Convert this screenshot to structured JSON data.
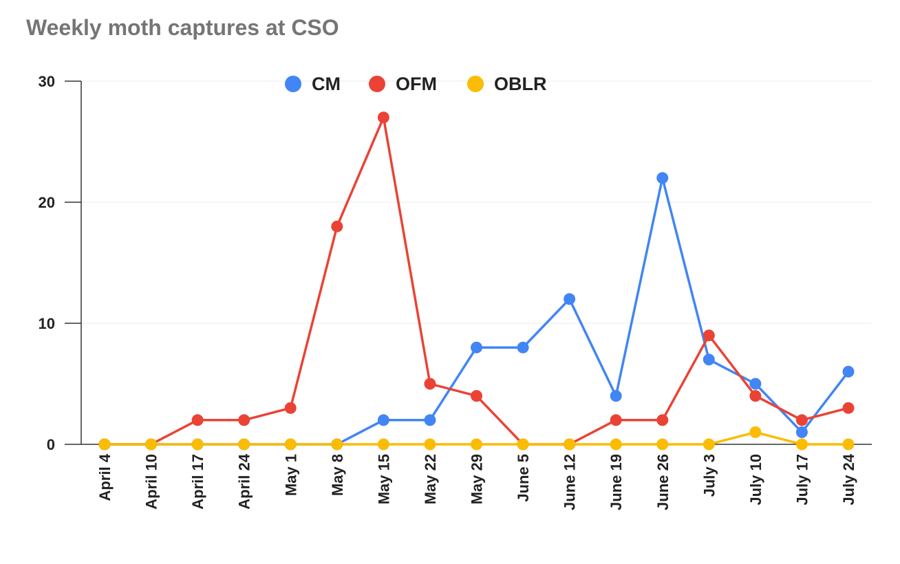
{
  "chart_data": {
    "type": "line",
    "title": "Weekly moth captures at CSO",
    "xlabel": "",
    "ylabel": "",
    "categories": [
      "April 4",
      "April 10",
      "April 17",
      "April 24",
      "May 1",
      "May 8",
      "May 15",
      "May 22",
      "May 29",
      "June 5",
      "June 12",
      "June 19",
      "June 26",
      "July 3",
      "July 10",
      "July 17",
      "July 24"
    ],
    "series": [
      {
        "name": "CM",
        "color": "#4285f4",
        "values": [
          0,
          0,
          0,
          0,
          0,
          0,
          2,
          2,
          8,
          8,
          12,
          4,
          22,
          7,
          5,
          1,
          6
        ]
      },
      {
        "name": "OFM",
        "color": "#ea4335",
        "values": [
          0,
          0,
          2,
          2,
          3,
          18,
          27,
          5,
          4,
          0,
          0,
          2,
          2,
          9,
          4,
          2,
          3
        ]
      },
      {
        "name": "OBLR",
        "color": "#fbbc04",
        "values": [
          0,
          0,
          0,
          0,
          0,
          0,
          0,
          0,
          0,
          0,
          0,
          0,
          0,
          0,
          1,
          0,
          0
        ]
      }
    ],
    "ylim": [
      0,
      30
    ],
    "yticks": [
      0,
      10,
      20,
      30
    ],
    "grid": true,
    "legend_position": "top"
  }
}
